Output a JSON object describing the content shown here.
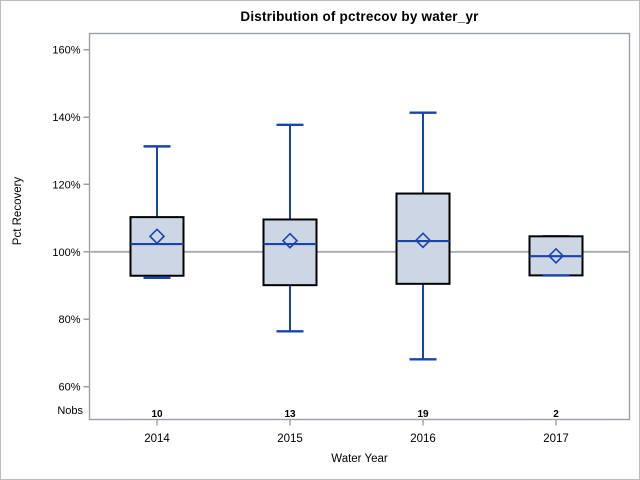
{
  "window": {
    "background": "#ffffff",
    "border_color": "#b9bec2"
  },
  "chart_data": {
    "type": "box",
    "title": "Distribution of pctrecov by water_yr",
    "xlabel": "Water Year",
    "ylabel": "Pct Recovery",
    "nobs_row_label": "Nobs",
    "categories": [
      "2014",
      "2015",
      "2016",
      "2017"
    ],
    "nobs": [
      10,
      13,
      19,
      2
    ],
    "y_ticks": [
      60,
      80,
      100,
      120,
      140,
      160
    ],
    "y_tick_suffix": "%",
    "ylim": [
      57.8,
      164.8
    ],
    "reference_line": 100,
    "grid": false,
    "legend": "none",
    "boxes": [
      {
        "category": "2014",
        "min": 92.3,
        "q1": 92.9,
        "median": 102.3,
        "q3": 110.3,
        "max": 131.3,
        "mean": 104.6
      },
      {
        "category": "2015",
        "min": 76.4,
        "q1": 90.1,
        "median": 102.3,
        "q3": 109.6,
        "max": 137.7,
        "mean": 103.3
      },
      {
        "category": "2016",
        "min": 68.1,
        "q1": 90.5,
        "median": 103.2,
        "q3": 117.3,
        "max": 141.3,
        "mean": 103.4
      },
      {
        "category": "2017",
        "min": 93.0,
        "q1": 93.0,
        "median": 98.7,
        "q3": 104.6,
        "max": 104.6,
        "mean": 98.8
      }
    ],
    "colors": {
      "box_fill": "#ccd6e4",
      "box_border": "#000000",
      "whisker": "#1a44ad",
      "median": "#1a44ad",
      "mean_marker": "#1a44ad",
      "reference_line": "#a7abae",
      "frame": "#9aa0a5",
      "text": "#000000"
    }
  }
}
